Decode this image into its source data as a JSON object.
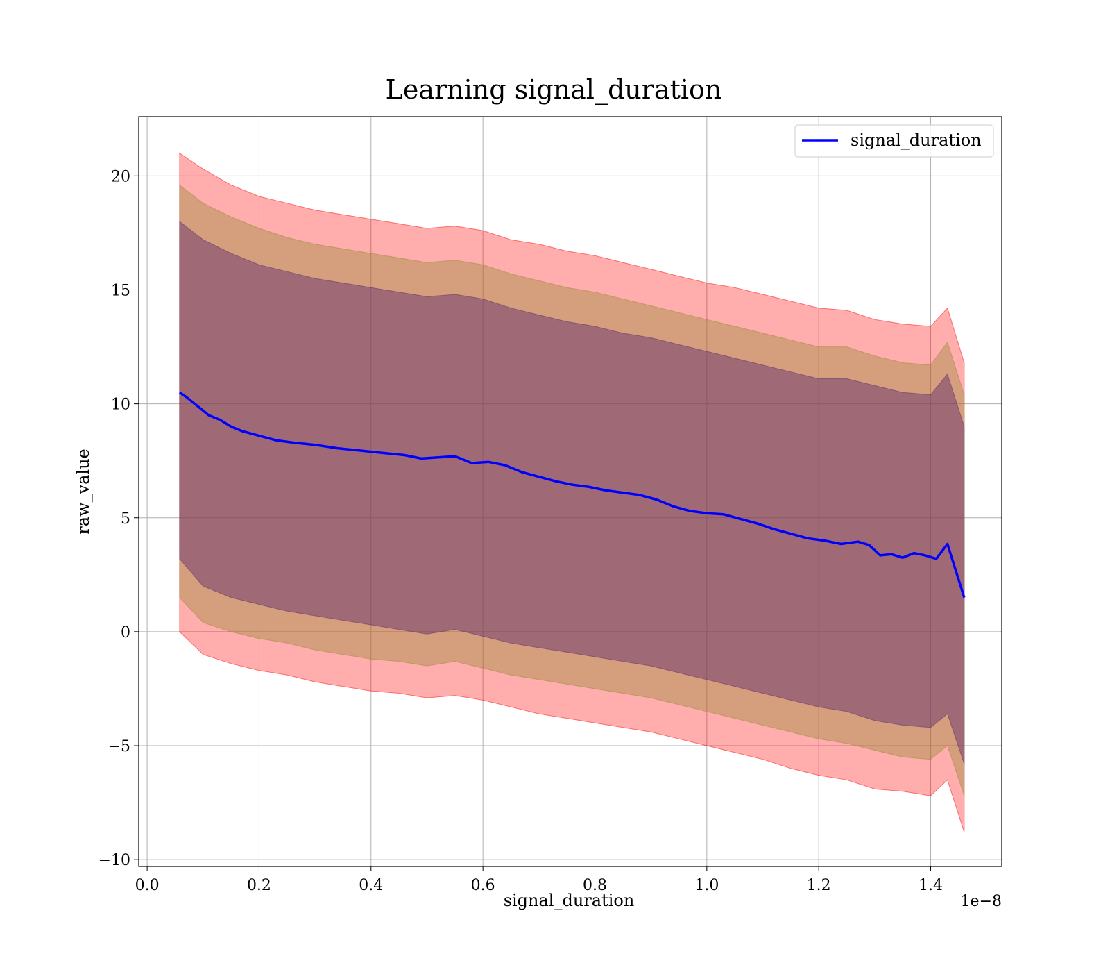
{
  "chart_data": {
    "type": "line",
    "title": "Learning signal_duration",
    "xlabel": "signal_duration",
    "ylabel": "raw_value",
    "x_offset_label": "1e−8",
    "x_scale": 1e-08,
    "xlim": [
      -0.015,
      1.527
    ],
    "ylim": [
      -10.3,
      22.6
    ],
    "xticks": [
      0.0,
      0.2,
      0.4,
      0.6,
      0.8,
      1.0,
      1.2,
      1.4
    ],
    "xtick_labels": [
      "0.0",
      "0.2",
      "0.4",
      "0.6",
      "0.8",
      "1.0",
      "1.2",
      "1.4"
    ],
    "yticks": [
      -10,
      -5,
      0,
      5,
      10,
      15,
      20
    ],
    "ytick_labels": [
      "−10",
      "−5",
      "0",
      "5",
      "10",
      "15",
      "20"
    ],
    "grid": true,
    "legend": {
      "position": "top-right",
      "entries": [
        "signal_duration"
      ]
    },
    "series": [
      {
        "name": "signal_duration",
        "color": "#0000ff",
        "x": [
          0.058,
          0.07,
          0.09,
          0.11,
          0.13,
          0.15,
          0.17,
          0.2,
          0.23,
          0.26,
          0.3,
          0.34,
          0.38,
          0.42,
          0.46,
          0.49,
          0.52,
          0.55,
          0.58,
          0.61,
          0.64,
          0.67,
          0.7,
          0.73,
          0.76,
          0.79,
          0.82,
          0.85,
          0.88,
          0.91,
          0.94,
          0.97,
          1.0,
          1.03,
          1.06,
          1.09,
          1.12,
          1.15,
          1.18,
          1.21,
          1.24,
          1.27,
          1.29,
          1.31,
          1.33,
          1.35,
          1.37,
          1.39,
          1.41,
          1.43,
          1.46
        ],
        "values": [
          10.5,
          10.3,
          9.9,
          9.5,
          9.3,
          9.0,
          8.8,
          8.6,
          8.4,
          8.3,
          8.2,
          8.05,
          7.95,
          7.85,
          7.75,
          7.6,
          7.65,
          7.7,
          7.4,
          7.45,
          7.3,
          7.0,
          6.8,
          6.6,
          6.45,
          6.35,
          6.2,
          6.1,
          6.0,
          5.8,
          5.5,
          5.3,
          5.2,
          5.15,
          4.95,
          4.75,
          4.5,
          4.3,
          4.1,
          4.0,
          3.85,
          3.95,
          3.8,
          3.35,
          3.4,
          3.25,
          3.45,
          3.35,
          3.2,
          3.85,
          1.5
        ]
      }
    ],
    "bands": [
      {
        "name": "outer",
        "color": "#ff0000",
        "opacity": 0.32,
        "x": [
          0.058,
          0.1,
          0.15,
          0.2,
          0.25,
          0.3,
          0.35,
          0.4,
          0.45,
          0.5,
          0.55,
          0.6,
          0.65,
          0.7,
          0.75,
          0.8,
          0.85,
          0.9,
          0.95,
          1.0,
          1.05,
          1.1,
          1.15,
          1.2,
          1.25,
          1.3,
          1.35,
          1.4,
          1.43,
          1.46
        ],
        "upper": [
          21.0,
          20.3,
          19.6,
          19.1,
          18.8,
          18.5,
          18.3,
          18.1,
          17.9,
          17.7,
          17.8,
          17.6,
          17.2,
          17.0,
          16.7,
          16.5,
          16.2,
          15.9,
          15.6,
          15.3,
          15.1,
          14.8,
          14.5,
          14.2,
          14.1,
          13.7,
          13.5,
          13.4,
          14.2,
          11.8
        ],
        "lower": [
          0.0,
          -1.0,
          -1.4,
          -1.7,
          -1.9,
          -2.2,
          -2.4,
          -2.6,
          -2.7,
          -2.9,
          -2.8,
          -3.0,
          -3.3,
          -3.6,
          -3.8,
          -4.0,
          -4.2,
          -4.4,
          -4.7,
          -5.0,
          -5.3,
          -5.6,
          -6.0,
          -6.3,
          -6.5,
          -6.9,
          -7.0,
          -7.2,
          -6.5,
          -8.8
        ]
      },
      {
        "name": "middle",
        "color": "#9a8a3c",
        "opacity": 0.42,
        "x": [
          0.058,
          0.1,
          0.15,
          0.2,
          0.25,
          0.3,
          0.35,
          0.4,
          0.45,
          0.5,
          0.55,
          0.6,
          0.65,
          0.7,
          0.75,
          0.8,
          0.85,
          0.9,
          0.95,
          1.0,
          1.05,
          1.1,
          1.15,
          1.2,
          1.25,
          1.3,
          1.35,
          1.4,
          1.43,
          1.46
        ],
        "upper": [
          19.6,
          18.8,
          18.2,
          17.7,
          17.3,
          17.0,
          16.8,
          16.6,
          16.4,
          16.2,
          16.3,
          16.1,
          15.7,
          15.4,
          15.1,
          14.9,
          14.6,
          14.3,
          14.0,
          13.7,
          13.4,
          13.1,
          12.8,
          12.5,
          12.5,
          12.1,
          11.8,
          11.7,
          12.7,
          10.4
        ],
        "lower": [
          1.5,
          0.4,
          0.0,
          -0.3,
          -0.5,
          -0.8,
          -1.0,
          -1.2,
          -1.3,
          -1.5,
          -1.3,
          -1.6,
          -1.9,
          -2.1,
          -2.3,
          -2.5,
          -2.7,
          -2.9,
          -3.2,
          -3.5,
          -3.8,
          -4.1,
          -4.4,
          -4.7,
          -4.9,
          -5.2,
          -5.5,
          -5.6,
          -5.0,
          -7.2
        ]
      },
      {
        "name": "inner",
        "color": "#5e2a6e",
        "opacity": 0.45,
        "x": [
          0.058,
          0.1,
          0.15,
          0.2,
          0.25,
          0.3,
          0.35,
          0.4,
          0.45,
          0.5,
          0.55,
          0.6,
          0.65,
          0.7,
          0.75,
          0.8,
          0.85,
          0.9,
          0.95,
          1.0,
          1.05,
          1.1,
          1.15,
          1.2,
          1.25,
          1.3,
          1.35,
          1.4,
          1.43,
          1.46
        ],
        "upper": [
          18.0,
          17.2,
          16.6,
          16.1,
          15.8,
          15.5,
          15.3,
          15.1,
          14.9,
          14.7,
          14.8,
          14.6,
          14.2,
          13.9,
          13.6,
          13.4,
          13.1,
          12.9,
          12.6,
          12.3,
          12.0,
          11.7,
          11.4,
          11.1,
          11.1,
          10.8,
          10.5,
          10.4,
          11.3,
          9.0
        ],
        "lower": [
          3.2,
          2.0,
          1.5,
          1.2,
          0.9,
          0.7,
          0.5,
          0.3,
          0.1,
          -0.1,
          0.1,
          -0.2,
          -0.5,
          -0.7,
          -0.9,
          -1.1,
          -1.3,
          -1.5,
          -1.8,
          -2.1,
          -2.4,
          -2.7,
          -3.0,
          -3.3,
          -3.5,
          -3.9,
          -4.1,
          -4.2,
          -3.6,
          -5.8
        ]
      }
    ]
  }
}
